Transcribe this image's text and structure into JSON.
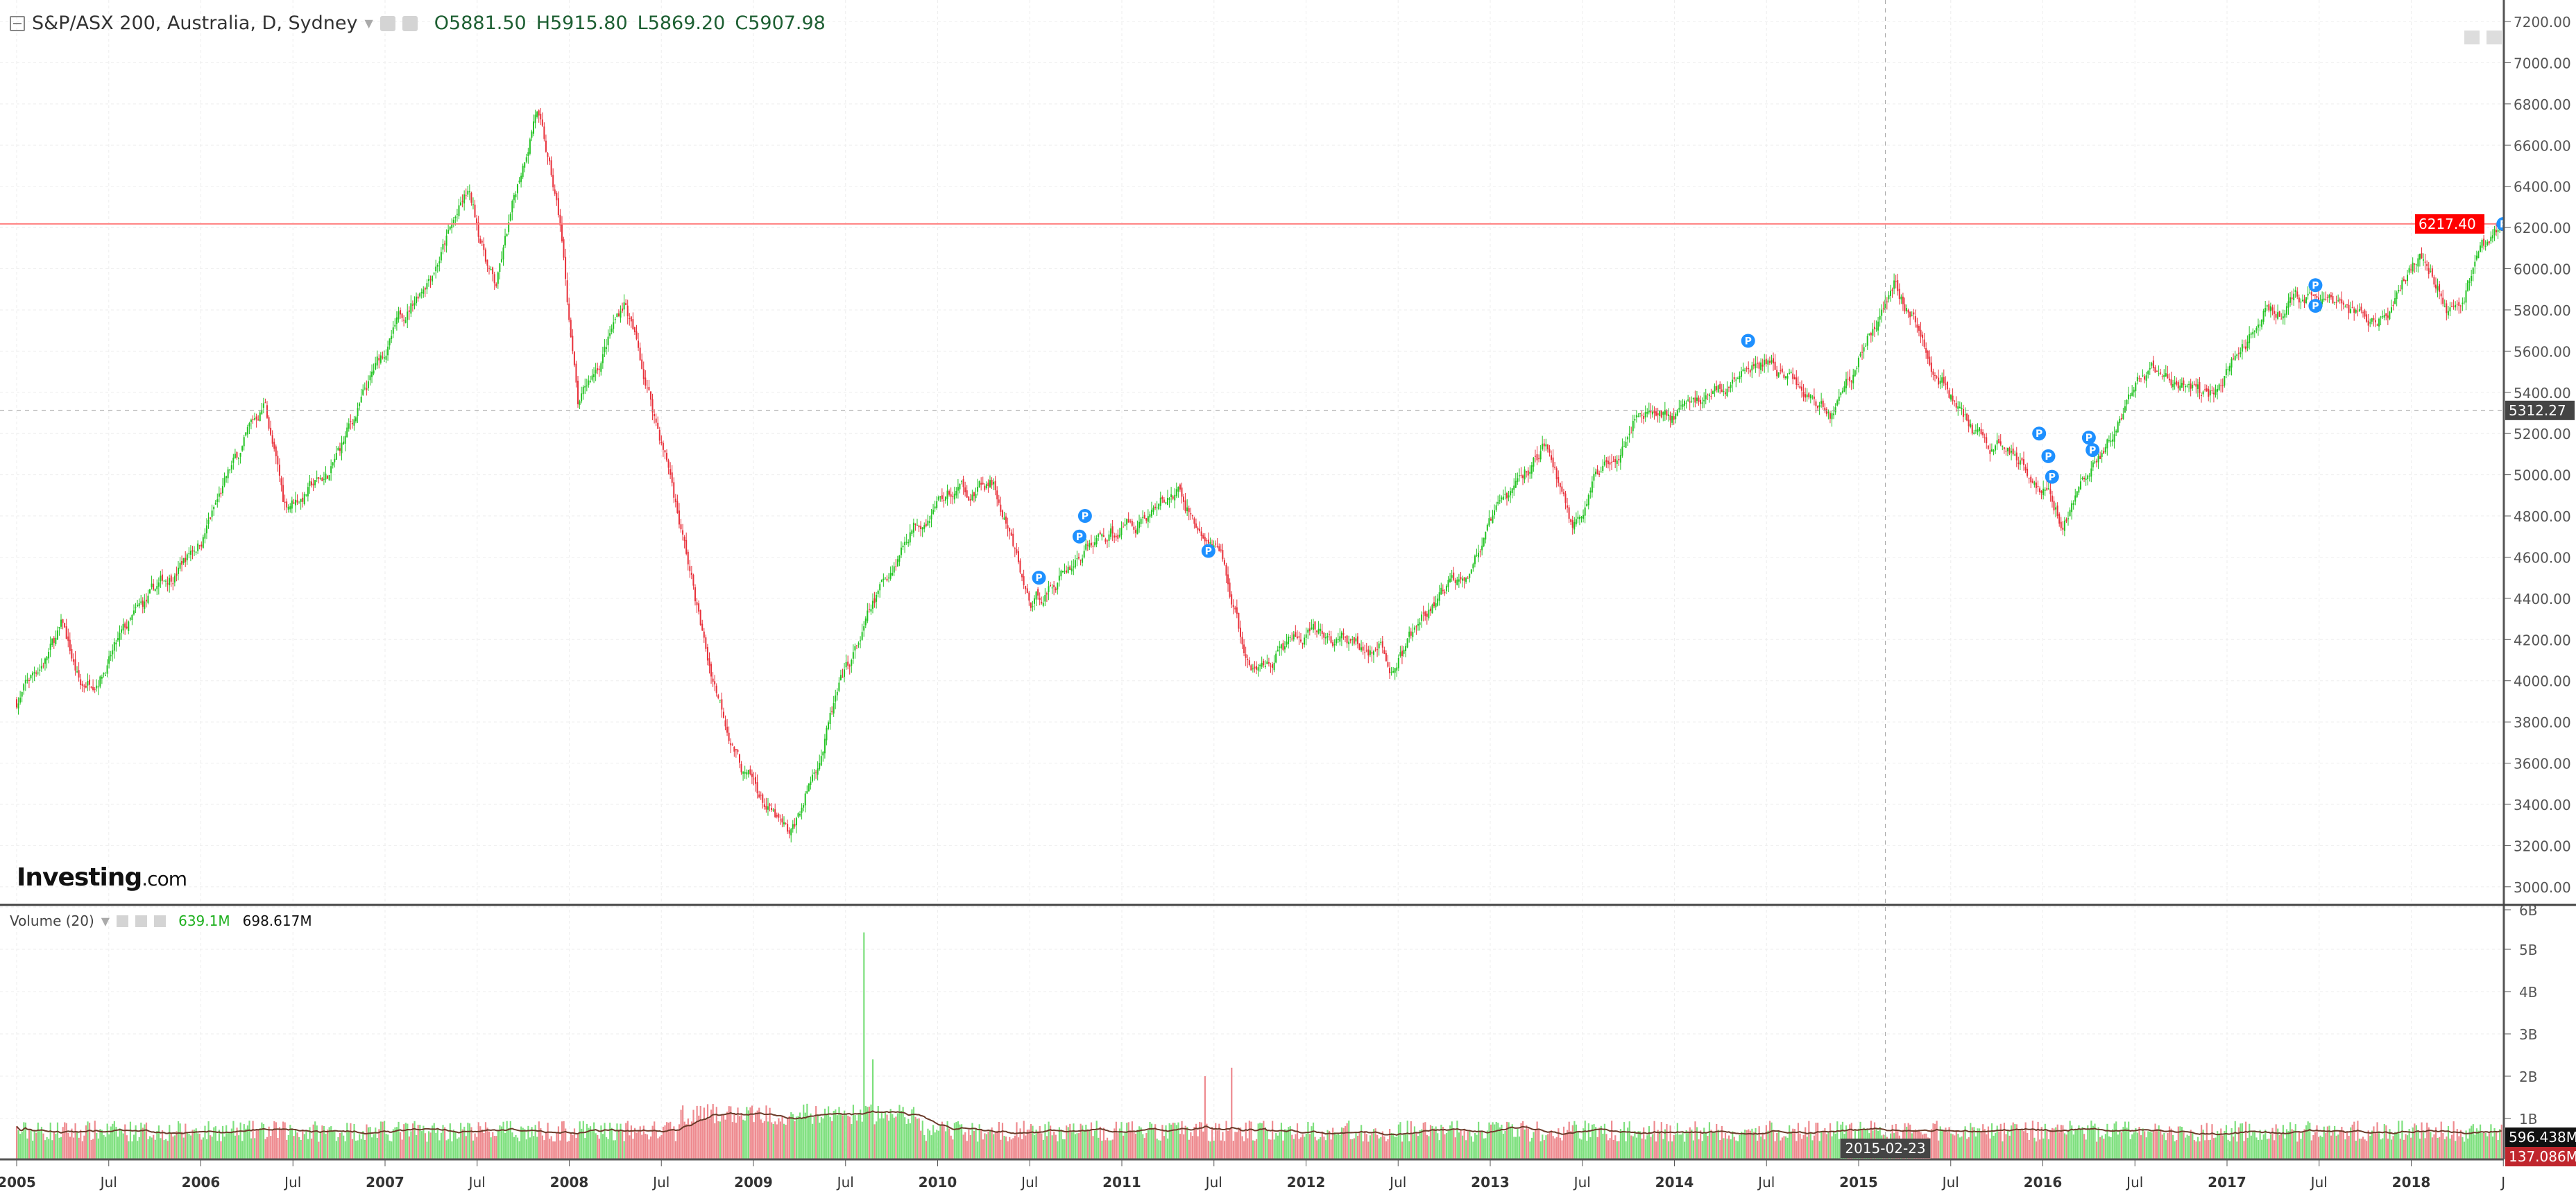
{
  "legend": {
    "title": "S&P/ASX 200, Australia, D, Sydney",
    "open": "O5881.50",
    "high": "H5915.80",
    "low": "L5869.20",
    "close": "C5907.98"
  },
  "volume_legend": {
    "title": "Volume (20)",
    "value": "639.1M",
    "ma": "698.617M"
  },
  "watermark": {
    "brand": "Investing",
    "suffix": ".com"
  },
  "colors": {
    "up": "#22c322",
    "down": "#e8303a",
    "last_price": "#ff0000",
    "marker": "#1e90ff"
  },
  "chart_data": {
    "type": "candlestick",
    "symbol": "S&P/ASX 200",
    "interval": "D",
    "price_axis": {
      "ticks": [
        "7200.00",
        "7000.00",
        "6800.00",
        "6600.00",
        "6400.00",
        "6200.00",
        "6000.00",
        "5800.00",
        "5600.00",
        "5400.00",
        "5200.00",
        "5000.00",
        "4800.00",
        "4600.00",
        "4400.00",
        "4200.00",
        "4000.00",
        "3800.00",
        "3600.00",
        "3400.00",
        "3200.00",
        "3000.00"
      ],
      "range": [
        3000,
        7200
      ]
    },
    "last_price_label": "6217.40",
    "last_price": 6217.4,
    "crosshair_price_label": "5312.27",
    "crosshair_price": 5312.27,
    "crosshair_date_label": "2015-02-23",
    "crosshair_date": 2015.145,
    "volume_axis": {
      "ticks": [
        "1B",
        "2B",
        "3B",
        "4B",
        "5B",
        "6B"
      ],
      "range_billions": [
        0,
        6
      ]
    },
    "volume_labels": [
      "596.438M",
      "137.086M"
    ],
    "time_axis": [
      {
        "label": "2005",
        "t": 2005
      },
      {
        "label": "Jul",
        "t": 2005.5
      },
      {
        "label": "2006",
        "t": 2006
      },
      {
        "label": "Jul",
        "t": 2006.5
      },
      {
        "label": "2007",
        "t": 2007
      },
      {
        "label": "Jul",
        "t": 2007.5
      },
      {
        "label": "2008",
        "t": 2008
      },
      {
        "label": "Jul",
        "t": 2008.5
      },
      {
        "label": "2009",
        "t": 2009
      },
      {
        "label": "Jul",
        "t": 2009.5
      },
      {
        "label": "2010",
        "t": 2010
      },
      {
        "label": "Jul",
        "t": 2010.5
      },
      {
        "label": "2011",
        "t": 2011
      },
      {
        "label": "Jul",
        "t": 2011.5
      },
      {
        "label": "2012",
        "t": 2012
      },
      {
        "label": "Jul",
        "t": 2012.5
      },
      {
        "label": "2013",
        "t": 2013
      },
      {
        "label": "Jul",
        "t": 2013.5
      },
      {
        "label": "2014",
        "t": 2014
      },
      {
        "label": "Jul",
        "t": 2014.5
      },
      {
        "label": "2015",
        "t": 2015
      },
      {
        "label": "Jul",
        "t": 2015.5
      },
      {
        "label": "2016",
        "t": 2016
      },
      {
        "label": "Jul",
        "t": 2016.5
      },
      {
        "label": "2017",
        "t": 2017
      },
      {
        "label": "Jul",
        "t": 2017.5
      },
      {
        "label": "2018",
        "t": 2018
      },
      {
        "label": "J",
        "t": 2018.5
      }
    ],
    "price_path": [
      [
        2005.0,
        3900
      ],
      [
        2005.25,
        4250
      ],
      [
        2005.35,
        3950
      ],
      [
        2005.7,
        4350
      ],
      [
        2006.0,
        4700
      ],
      [
        2006.35,
        5350
      ],
      [
        2006.45,
        4850
      ],
      [
        2006.7,
        5000
      ],
      [
        2007.0,
        5600
      ],
      [
        2007.45,
        6350
      ],
      [
        2007.6,
        5900
      ],
      [
        2007.82,
        6800
      ],
      [
        2007.95,
        6200
      ],
      [
        2008.05,
        5300
      ],
      [
        2008.3,
        5850
      ],
      [
        2008.55,
        5000
      ],
      [
        2008.75,
        4100
      ],
      [
        2008.95,
        3550
      ],
      [
        2009.2,
        3200
      ],
      [
        2009.45,
        3900
      ],
      [
        2009.7,
        4450
      ],
      [
        2009.85,
        4750
      ],
      [
        2010.0,
        4900
      ],
      [
        2010.3,
        4950
      ],
      [
        2010.5,
        4350
      ],
      [
        2010.8,
        4650
      ],
      [
        2011.0,
        4750
      ],
      [
        2011.3,
        4900
      ],
      [
        2011.55,
        4550
      ],
      [
        2011.7,
        4000
      ],
      [
        2011.85,
        4150
      ],
      [
        2012.0,
        4200
      ],
      [
        2012.4,
        4150
      ],
      [
        2012.45,
        4050
      ],
      [
        2012.9,
        4600
      ],
      [
        2013.3,
        5150
      ],
      [
        2013.45,
        4750
      ],
      [
        2013.8,
        5350
      ],
      [
        2014.0,
        5300
      ],
      [
        2014.5,
        5550
      ],
      [
        2014.85,
        5300
      ],
      [
        2015.2,
        5950
      ],
      [
        2015.4,
        5550
      ],
      [
        2015.65,
        5150
      ],
      [
        2015.9,
        5100
      ],
      [
        2016.1,
        4800
      ],
      [
        2016.35,
        5150
      ],
      [
        2016.6,
        5500
      ],
      [
        2016.9,
        5350
      ],
      [
        2017.2,
        5800
      ],
      [
        2017.45,
        5850
      ],
      [
        2017.8,
        5700
      ],
      [
        2018.05,
        6100
      ],
      [
        2018.2,
        5850
      ],
      [
        2018.4,
        6080
      ],
      [
        2018.5,
        6217
      ]
    ],
    "volume_spikes": [
      [
        2009.6,
        5.4
      ],
      [
        2009.65,
        2.4
      ],
      [
        2011.6,
        2.2
      ],
      [
        2011.45,
        2.0
      ]
    ],
    "markers": [
      {
        "label": "P",
        "t": 2010.55,
        "price": 4500
      },
      {
        "label": "P",
        "t": 2010.77,
        "price": 4700
      },
      {
        "label": "P",
        "t": 2010.8,
        "price": 4800
      },
      {
        "label": "P",
        "t": 2011.47,
        "price": 4630
      },
      {
        "label": "P",
        "t": 2014.4,
        "price": 5650
      },
      {
        "label": "P",
        "t": 2015.98,
        "price": 5200
      },
      {
        "label": "P",
        "t": 2016.03,
        "price": 5090
      },
      {
        "label": "P",
        "t": 2016.05,
        "price": 4990
      },
      {
        "label": "P",
        "t": 2016.25,
        "price": 5180
      },
      {
        "label": "P",
        "t": 2016.27,
        "price": 5120
      },
      {
        "label": "P",
        "t": 2017.48,
        "price": 5920
      },
      {
        "label": "P",
        "t": 2017.48,
        "price": 5820
      },
      {
        "label": "P",
        "t": 2018.5,
        "price": 6217
      }
    ]
  }
}
